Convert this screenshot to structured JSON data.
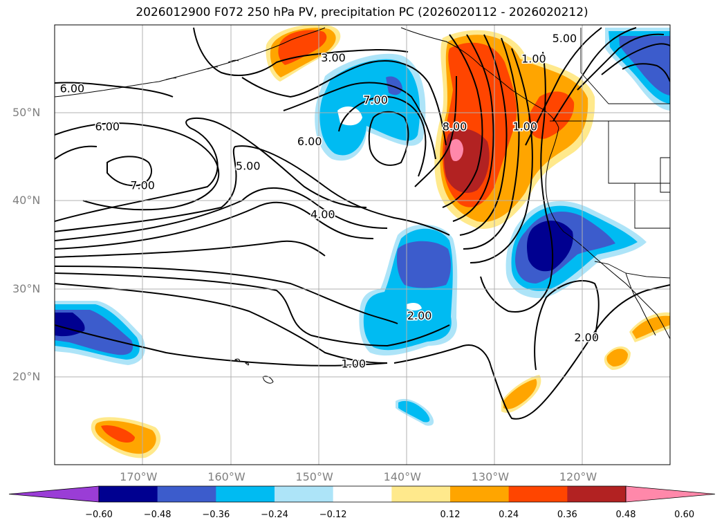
{
  "title": "2026012900 F072 250 hPa PV, precipitation PC (2026020112 - 2026020212)",
  "axes": {
    "lat_labels": [
      "50°N",
      "40°N",
      "30°N",
      "20°N"
    ],
    "lon_labels": [
      "170°W",
      "160°W",
      "150°W",
      "140°W",
      "130°W",
      "120°W"
    ],
    "lon_range": [
      -180,
      -110
    ],
    "lat_range": [
      10,
      60
    ],
    "grid": true
  },
  "colorbar": {
    "levels": [
      "−0.60",
      "−0.48",
      "−0.36",
      "−0.24",
      "−0.12",
      "0.12",
      "0.24",
      "0.36",
      "0.48",
      "0.60"
    ],
    "colors": [
      "#9a3dd6",
      "#000090",
      "#3c5ccc",
      "#00bbf2",
      "#ade4f8",
      "#ffffff",
      "#ffe98c",
      "#ffa500",
      "#ff4500",
      "#b22222",
      "#ff88aa"
    ],
    "extend": "both"
  },
  "contour_labels": [
    {
      "text": "6.00",
      "lon": -178,
      "lat": 52.8
    },
    {
      "text": "6.00",
      "lon": -174,
      "lat": 48.5
    },
    {
      "text": "7.00",
      "lon": -170,
      "lat": 41.8
    },
    {
      "text": "5.00",
      "lon": -158,
      "lat": 44.0
    },
    {
      "text": "3.00",
      "lon": -148.3,
      "lat": 56.3
    },
    {
      "text": "7.00",
      "lon": -143.5,
      "lat": 51.5
    },
    {
      "text": "6.00",
      "lon": -151,
      "lat": 46.8
    },
    {
      "text": "4.00",
      "lon": -149.5,
      "lat": 38.5
    },
    {
      "text": "8.00",
      "lon": -134.5,
      "lat": 48.5
    },
    {
      "text": "2.00",
      "lon": -138.5,
      "lat": 27.0
    },
    {
      "text": "1.00",
      "lon": -146,
      "lat": 21.5
    },
    {
      "text": "1.00",
      "lon": -126.5,
      "lat": 48.5
    },
    {
      "text": "1.00",
      "lon": -125.5,
      "lat": 56.2
    },
    {
      "text": "5.00",
      "lon": -122,
      "lat": 58.5
    },
    {
      "text": "2.00",
      "lon": -119.5,
      "lat": 24.5
    }
  ]
}
